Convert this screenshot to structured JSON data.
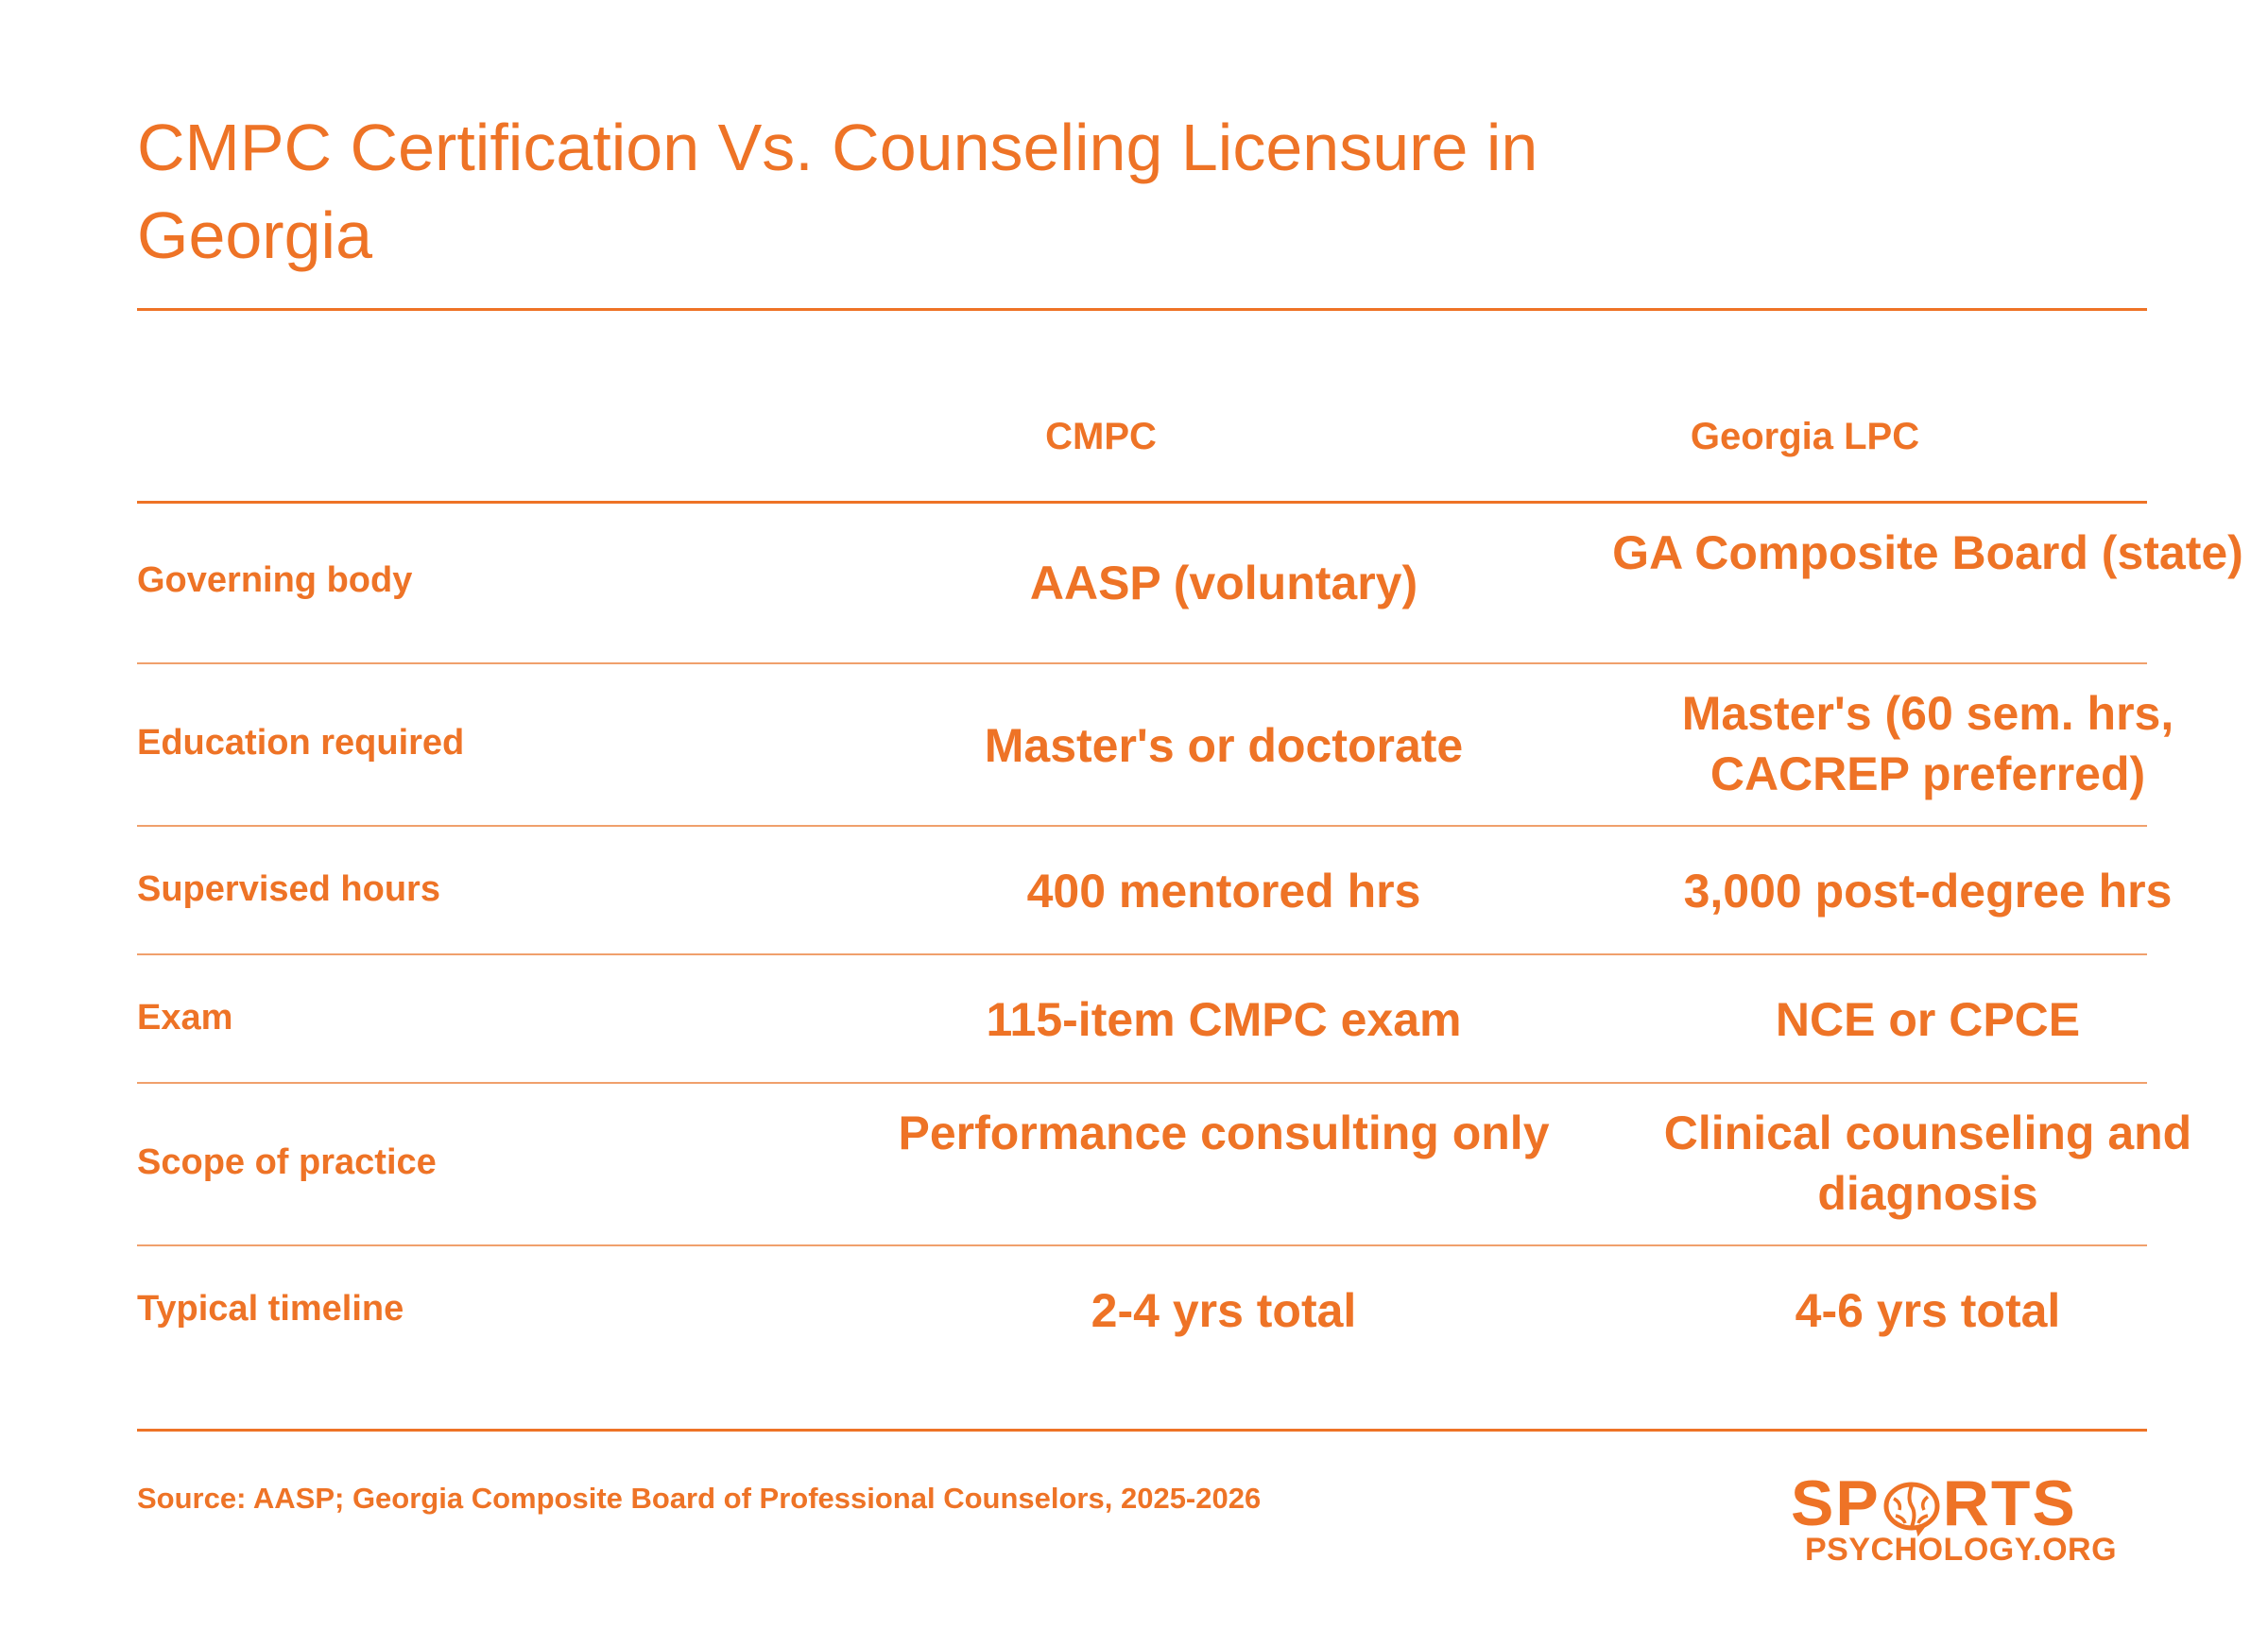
{
  "title": "CMPC Certification Vs. Counseling Licensure in Georgia",
  "columns": [
    "CMPC",
    "Georgia LPC"
  ],
  "rows": [
    {
      "label": "Governing body",
      "cmpc": "AASP (voluntary)",
      "lpc": "GA Composite Board (state)"
    },
    {
      "label": "Education required",
      "cmpc": "Master's or doctorate",
      "lpc": "Master's (60 sem. hrs, CACREP preferred)"
    },
    {
      "label": "Supervised hours",
      "cmpc": "400 mentored hrs",
      "lpc": "3,000 post-degree hrs"
    },
    {
      "label": "Exam",
      "cmpc": "115-item CMPC exam",
      "lpc": "NCE or CPCE"
    },
    {
      "label": "Scope of practice",
      "cmpc": "Performance consulting only",
      "lpc": "Clinical counseling and diagnosis"
    },
    {
      "label": "Typical timeline",
      "cmpc": "2-4 yrs total",
      "lpc": "4-6 yrs total"
    }
  ],
  "source": "Source: AASP; Georgia Composite Board of Professional Counselors, 2025-2026",
  "logo": {
    "top_left": "SP",
    "top_right": "RTS",
    "bottom": "PSYCHOLOGY.ORG"
  },
  "colors": {
    "accent": "#ee7326"
  }
}
